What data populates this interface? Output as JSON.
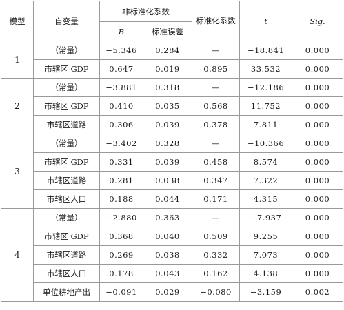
{
  "headers": {
    "model": "模型",
    "variable": "自变量",
    "unstd_group": "非标准化系数",
    "b": "B",
    "se": "标准误差",
    "std_coef": "标准化系数",
    "t": "t",
    "sig": "Sig."
  },
  "models": [
    {
      "id": "1",
      "rows": [
        {
          "variable": "（常量）",
          "b": "−5.346",
          "se": "0.284",
          "beta": "—",
          "t": "−18.841",
          "sig": "0.000"
        },
        {
          "variable": "市辖区 GDP",
          "b": "0.647",
          "se": "0.019",
          "beta": "0.895",
          "t": "33.532",
          "sig": "0.000"
        }
      ]
    },
    {
      "id": "2",
      "rows": [
        {
          "variable": "（常量）",
          "b": "−3.881",
          "se": "0.318",
          "beta": "—",
          "t": "−12.186",
          "sig": "0.000"
        },
        {
          "variable": "市辖区 GDP",
          "b": "0.410",
          "se": "0.035",
          "beta": "0.568",
          "t": "11.752",
          "sig": "0.000"
        },
        {
          "variable": "市辖区道路",
          "b": "0.306",
          "se": "0.039",
          "beta": "0.378",
          "t": "7.811",
          "sig": "0.000"
        }
      ]
    },
    {
      "id": "3",
      "rows": [
        {
          "variable": "（常量）",
          "b": "−3.402",
          "se": "0.328",
          "beta": "—",
          "t": "−10.366",
          "sig": "0.000"
        },
        {
          "variable": "市辖区 GDP",
          "b": "0.331",
          "se": "0.039",
          "beta": "0.458",
          "t": "8.574",
          "sig": "0.000"
        },
        {
          "variable": "市辖区道路",
          "b": "0.281",
          "se": "0.038",
          "beta": "0.347",
          "t": "7.322",
          "sig": "0.000"
        },
        {
          "variable": "市辖区人口",
          "b": "0.188",
          "se": "0.044",
          "beta": "0.171",
          "t": "4.315",
          "sig": "0.000"
        }
      ]
    },
    {
      "id": "4",
      "rows": [
        {
          "variable": "（常量）",
          "b": "−2.880",
          "se": "0.363",
          "beta": "—",
          "t": "−7.937",
          "sig": "0.000"
        },
        {
          "variable": "市辖区 GDP",
          "b": "0.368",
          "se": "0.040",
          "beta": "0.509",
          "t": "9.255",
          "sig": "0.000"
        },
        {
          "variable": "市辖区道路",
          "b": "0.269",
          "se": "0.038",
          "beta": "0.332",
          "t": "7.073",
          "sig": "0.000"
        },
        {
          "variable": "市辖区人口",
          "b": "0.178",
          "se": "0.043",
          "beta": "0.162",
          "t": "4.138",
          "sig": "0.000"
        },
        {
          "variable": "单位耕地产出",
          "b": "−0.091",
          "se": "0.029",
          "beta": "−0.080",
          "t": "−3.159",
          "sig": "0.002"
        }
      ]
    }
  ]
}
